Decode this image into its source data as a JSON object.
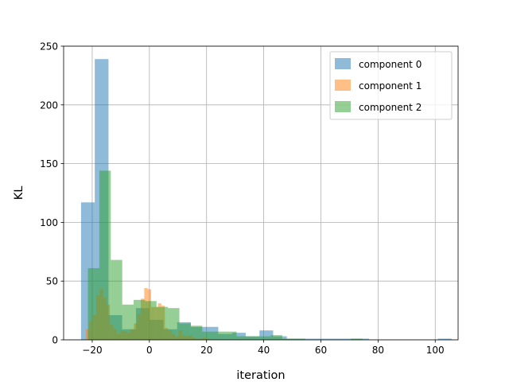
{
  "chart_data": {
    "type": "bar",
    "title": "",
    "xlabel": "iteration",
    "ylabel": "KL",
    "xlim": [
      -30,
      108
    ],
    "ylim": [
      0,
      250
    ],
    "xticks": [
      -20,
      0,
      20,
      40,
      60,
      80,
      100
    ],
    "yticks": [
      0,
      50,
      100,
      150,
      200,
      250
    ],
    "grid": true,
    "legend_position": "top-right",
    "series": [
      {
        "name": "component 0",
        "color": "#1f77b4",
        "bin_edges": [
          -23.9,
          -19.1,
          -14.3,
          -9.5,
          -4.7,
          0.1,
          4.9,
          9.7,
          14.5,
          19.3,
          24.1,
          28.9,
          33.7,
          38.5,
          43.3,
          48.1,
          52.9,
          57.7,
          62.5,
          67.3,
          72.1,
          76.9,
          81.7,
          86.5,
          91.3,
          96.1,
          100.9,
          105.7
        ],
        "values": [
          117,
          239,
          21,
          9,
          27,
          17,
          9,
          15,
          11,
          11,
          5,
          6,
          3,
          8,
          3,
          1,
          1,
          1,
          1,
          1,
          1,
          0,
          0,
          0,
          0,
          0,
          1
        ]
      },
      {
        "name": "component 1",
        "color": "#ff7f0e",
        "bin_edges": [
          -22.2,
          -21.0,
          -19.8,
          -18.6,
          -17.4,
          -16.2,
          -15.0,
          -13.8,
          -12.6,
          -11.4,
          -10.2,
          -9.0,
          -7.8,
          -6.6,
          -5.4,
          -4.2,
          -3.0,
          -1.8,
          -0.6,
          0.6,
          1.8,
          3.0,
          4.2,
          5.4,
          6.6,
          7.8,
          9.0,
          10.2,
          11.4,
          12.6,
          13.8,
          15.0,
          16.2,
          17.4,
          18.6,
          19.8,
          21.0
        ],
        "values": [
          9,
          16,
          21,
          38,
          43,
          36,
          30,
          13,
          9,
          5,
          8,
          7,
          6,
          9,
          14,
          22,
          35,
          44,
          43,
          28,
          28,
          31,
          29,
          10,
          8,
          5,
          3,
          8,
          4,
          3,
          4,
          2,
          1,
          1,
          2,
          1
        ]
      },
      {
        "name": "component 2",
        "color": "#2ca02c",
        "bin_edges": [
          -21.5,
          -17.5,
          -13.5,
          -9.5,
          -5.5,
          -1.5,
          2.5,
          6.5,
          10.5,
          14.5,
          18.5,
          22.5,
          26.5,
          30.5,
          34.5,
          38.5,
          42.5,
          46.5,
          50.5,
          54.5,
          58.5,
          62.5,
          66.5,
          70.5,
          74.5
        ],
        "values": [
          61,
          144,
          68,
          30,
          34,
          33,
          28,
          27,
          14,
          12,
          7,
          7,
          7,
          3,
          3,
          3,
          4,
          1,
          1,
          0,
          0,
          0,
          0,
          1
        ]
      }
    ]
  }
}
